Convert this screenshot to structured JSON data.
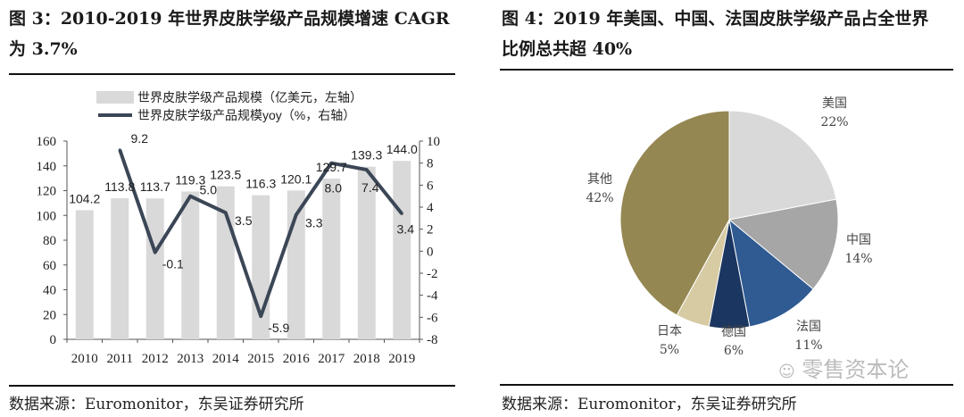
{
  "left": {
    "title_line1": "图 3：2010-2019 年世界皮肤学级产品规模增速 CAGR",
    "title_line2": "为 3.7%",
    "source": "数据来源：Euromonitor，东吴证券研究所"
  },
  "right": {
    "title_line1": "图 4：2019 年美国、中国、法国皮肤学级产品占全世界",
    "title_line2": "比例总共超 40%",
    "source": "数据来源：Euromonitor，东吴证券研究所",
    "watermark": "零售资本论"
  },
  "chart_data": [
    {
      "type": "bar+line",
      "categories": [
        "2010",
        "2011",
        "2012",
        "2013",
        "2014",
        "2015",
        "2016",
        "2017",
        "2018",
        "2019"
      ],
      "series": [
        {
          "name": "世界皮肤学级产品规模（亿美元，左轴）",
          "type": "bar",
          "axis": "left",
          "color": "#d9d9d9",
          "values": [
            104.2,
            113.8,
            113.7,
            119.3,
            123.5,
            116.3,
            120.1,
            129.7,
            139.3,
            144.0
          ],
          "labels": [
            "104.2",
            "113.8",
            "113.7",
            "119.3",
            "123.5",
            "116.3",
            "120.1",
            "129.7",
            "139.3",
            "144.0"
          ]
        },
        {
          "name": "世界皮肤学级产品规模yoy（%，右轴）",
          "type": "line",
          "axis": "right",
          "color": "#3b4656",
          "values": [
            null,
            9.2,
            -0.1,
            5.0,
            3.5,
            -5.9,
            3.3,
            8.0,
            7.4,
            3.4
          ],
          "labels": [
            "",
            "9.2",
            "-0.1",
            "5.0",
            "3.5",
            "-5.9",
            "3.3",
            "8.0",
            "7.4",
            "3.4"
          ]
        }
      ],
      "ylim_left": [
        0,
        160
      ],
      "yticks_left": [
        "0",
        "20",
        "40",
        "60",
        "80",
        "100",
        "120",
        "140",
        "160"
      ],
      "ylim_right": [
        -8,
        10
      ],
      "yticks_right": [
        "-8",
        "-6",
        "-4",
        "-2",
        "0",
        "2",
        "4",
        "6",
        "8",
        "10"
      ],
      "legend": "top"
    },
    {
      "type": "pie",
      "slices": [
        {
          "label": "美国",
          "value": 22,
          "pct": "22%",
          "color": "#d9d9d9"
        },
        {
          "label": "中国",
          "value": 14,
          "pct": "14%",
          "color": "#a6a6a6"
        },
        {
          "label": "法国",
          "value": 11,
          "pct": "11%",
          "color": "#2f5a92"
        },
        {
          "label": "德国",
          "value": 6,
          "pct": "6%",
          "color": "#1b3660"
        },
        {
          "label": "日本",
          "value": 5,
          "pct": "5%",
          "color": "#d6cba3"
        },
        {
          "label": "其他",
          "value": 42,
          "pct": "42%",
          "color": "#958752"
        }
      ]
    }
  ]
}
